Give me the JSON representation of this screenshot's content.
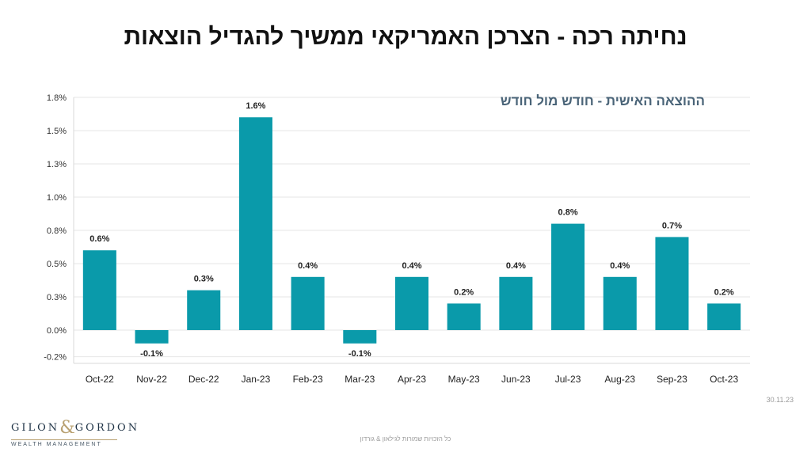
{
  "page": {
    "title": "נחיתה רכה - הצרכן האמריקאי ממשיך להגדיל הוצאות",
    "date": "30.11.23",
    "rights": "כל הזכויות שמורות לגילאון & גורדון"
  },
  "logo": {
    "name_left": "GILON",
    "ampersand": "&",
    "name_right": "GORDON",
    "tagline": "WEALTH MANAGEMENT"
  },
  "chart_data": {
    "type": "bar",
    "title": "ההוצאה האישית - חודש מול חודש",
    "categories": [
      "Oct-22",
      "Nov-22",
      "Dec-22",
      "Jan-23",
      "Feb-23",
      "Mar-23",
      "Apr-23",
      "May-23",
      "Jun-23",
      "Jul-23",
      "Aug-23",
      "Sep-23",
      "Oct-23"
    ],
    "values": [
      0.6,
      -0.1,
      0.3,
      1.6,
      0.4,
      -0.1,
      0.4,
      0.2,
      0.4,
      0.8,
      0.4,
      0.7,
      0.2
    ],
    "data_labels": [
      "0.6%",
      "-0.1%",
      "0.3%",
      "1.6%",
      "0.4%",
      "-0.1%",
      "0.4%",
      "0.2%",
      "0.4%",
      "0.8%",
      "0.4%",
      "0.7%",
      "0.2%"
    ],
    "y_ticks": [
      -0.2,
      0.0,
      0.25,
      0.5,
      0.75,
      1.0,
      1.25,
      1.5,
      1.75
    ],
    "y_tick_labels": [
      "-0.2%",
      "0.0%",
      "0.3%",
      "0.5%",
      "0.8%",
      "1.0%",
      "1.3%",
      "1.5%",
      "1.8%"
    ],
    "ylim": [
      -0.25,
      1.75
    ],
    "grid": true,
    "bar_color": "#0a9aaa",
    "xlabel": "",
    "ylabel": ""
  }
}
